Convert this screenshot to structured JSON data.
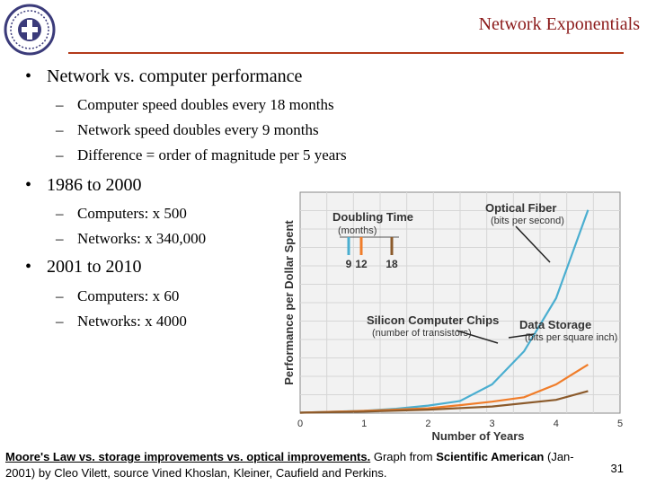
{
  "header": {
    "title": "Network Exponentials"
  },
  "bullets": [
    {
      "text": "Network vs. computer performance",
      "subs": [
        "Computer speed doubles every 18 months",
        "Network speed doubles every 9 months",
        "Difference = order of magnitude per 5 years"
      ]
    },
    {
      "text": "1986 to 2000",
      "subs": [
        "Computers: x 500",
        "Networks: x 340,000"
      ]
    },
    {
      "text": "2001 to 2010",
      "subs": [
        "Computers: x 60",
        "Networks: x 4000"
      ]
    }
  ],
  "chart_data": {
    "type": "line",
    "xlabel": "Number of Years",
    "ylabel": "Performance per Dollar Spent",
    "xlim": [
      0,
      5
    ],
    "x_ticks": [
      "0",
      "1",
      "2",
      "3",
      "4",
      "5"
    ],
    "y_ticks": [],
    "grid": true,
    "series": [
      {
        "name": "Optical Fiber",
        "sub": "(bits per second)",
        "color": "#4aaed0",
        "x": [
          0,
          0.5,
          1,
          1.5,
          2,
          2.5,
          3,
          3.5,
          4,
          4.5
        ],
        "y": [
          0.2,
          0.6,
          1.1,
          2.0,
          3.4,
          5.5,
          13,
          28,
          52,
          92
        ]
      },
      {
        "name": "Data Storage",
        "sub": "(bits per square inch)",
        "color": "#f07d2a",
        "x": [
          0,
          1,
          2,
          2.5,
          3,
          3.5,
          4,
          4.5
        ],
        "y": [
          0.2,
          1.0,
          2.2,
          3.6,
          5.2,
          7.2,
          13,
          22
        ]
      },
      {
        "name": "Silicon Computer Chips",
        "sub": "(number of transistors)",
        "color": "#8b5a2b",
        "x": [
          0,
          1,
          2,
          3,
          4,
          4.5
        ],
        "y": [
          0.2,
          0.7,
          1.6,
          3.0,
          6.0,
          10
        ]
      }
    ],
    "inset": {
      "title": "Doubling Time",
      "sub": "(months)",
      "bars": [
        {
          "label": "9",
          "color": "#4aaed0"
        },
        {
          "label": "12",
          "color": "#f07d2a"
        },
        {
          "label": "18",
          "color": "#8b5a2b"
        }
      ]
    }
  },
  "caption": {
    "link": "Moore's Law vs. storage improvements vs. optical improvements.",
    "mid": " Graph from ",
    "source": "Scientific American",
    "rest1": " (Jan-",
    "line2": "2001) by Cleo Vilett, source Vined Khoslan, Kleiner, Caufield and Perkins."
  },
  "page_number": "31",
  "colors": {
    "title": "#8b1a1a",
    "rule": "#b33a1a"
  }
}
